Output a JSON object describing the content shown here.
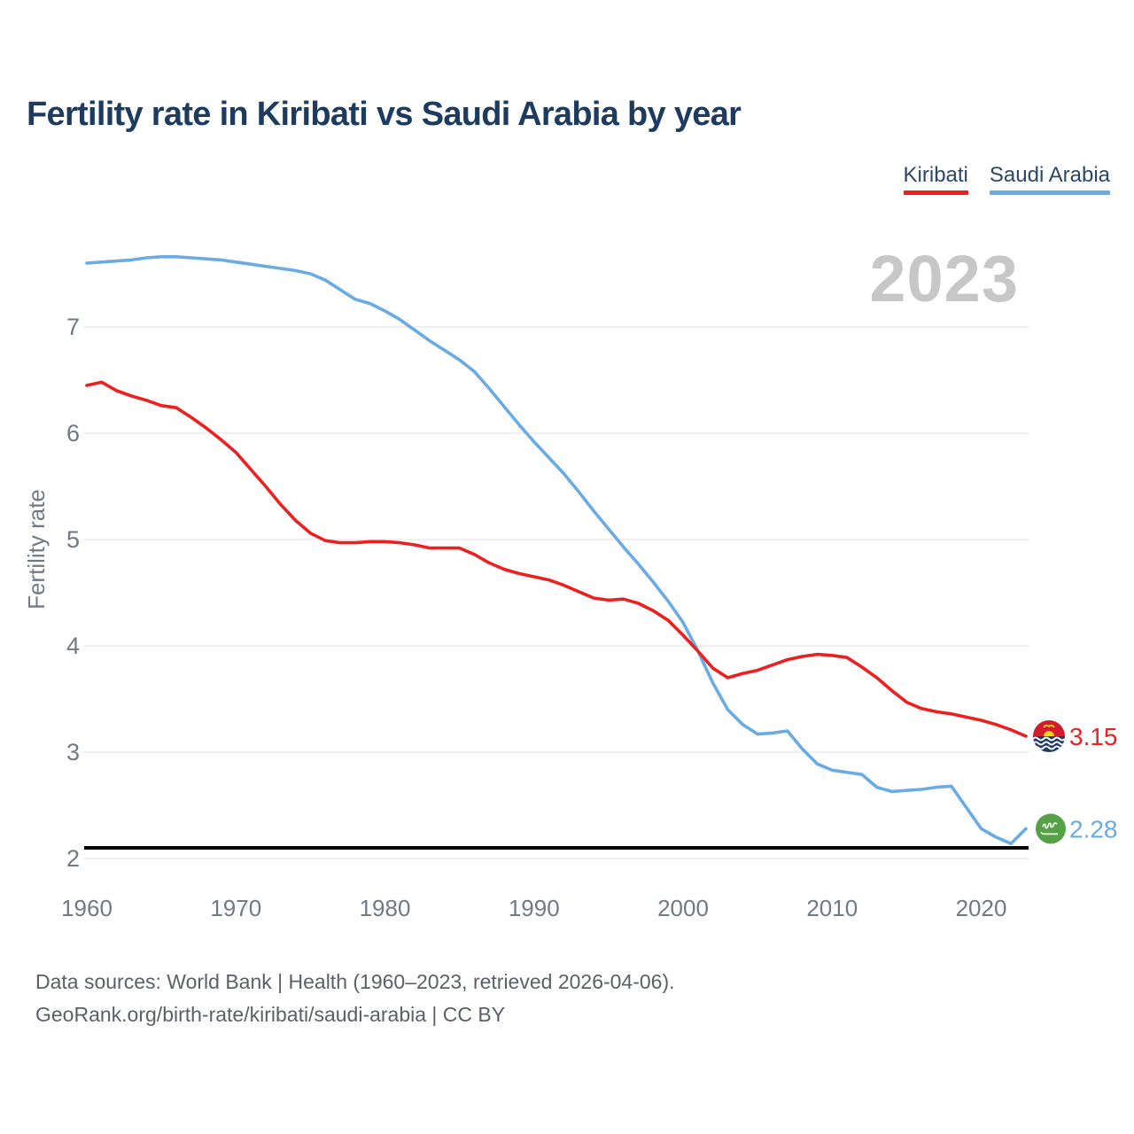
{
  "header": {
    "title": "Fertility rate in Kiribati vs Saudi Arabia by year",
    "legend": [
      {
        "label": "Kiribati",
        "color": "#ec2020"
      },
      {
        "label": "Saudi Arabia",
        "color": "#6aabe2"
      }
    ]
  },
  "watermark": "2023",
  "chart_data": {
    "type": "line",
    "title": "Fertility rate in Kiribati vs Saudi Arabia by year",
    "xlabel": "",
    "ylabel": "Fertility rate",
    "xlim": [
      1960,
      2023
    ],
    "ylim": [
      2,
      7.75
    ],
    "grid": "horizontal-only",
    "legend_position": "top-right",
    "x_ticks": [
      1960,
      1970,
      1980,
      1990,
      2000,
      2010,
      2020
    ],
    "y_ticks": [
      7,
      6,
      5,
      4,
      3,
      2
    ],
    "year_start": 1960,
    "year_end": 2023,
    "replacement_line": {
      "value": 2.1,
      "color": "#000000"
    },
    "series": [
      {
        "name": "Kiribati",
        "color": "#ec2020",
        "end_label": "3.15",
        "final_value": 3.15,
        "flag": "kiribati",
        "values": [
          6.45,
          6.48,
          6.4,
          6.35,
          6.31,
          6.26,
          6.24,
          6.15,
          6.05,
          5.94,
          5.82,
          5.66,
          5.5,
          5.33,
          5.18,
          5.06,
          4.99,
          4.97,
          4.97,
          4.98,
          4.98,
          4.97,
          4.95,
          4.92,
          4.92,
          4.92,
          4.86,
          4.78,
          4.72,
          4.68,
          4.65,
          4.62,
          4.57,
          4.51,
          4.45,
          4.43,
          4.44,
          4.4,
          4.33,
          4.24,
          4.1,
          3.95,
          3.79,
          3.7,
          3.74,
          3.77,
          3.82,
          3.87,
          3.9,
          3.92,
          3.91,
          3.89,
          3.8,
          3.7,
          3.58,
          3.47,
          3.41,
          3.38,
          3.36,
          3.33,
          3.3,
          3.26,
          3.21,
          3.15
        ]
      },
      {
        "name": "Saudi Arabia",
        "color": "#6aabe2",
        "end_label": "2.28",
        "final_value": 2.28,
        "flag": "saudi-arabia",
        "values": [
          7.6,
          7.61,
          7.62,
          7.63,
          7.65,
          7.66,
          7.66,
          7.65,
          7.64,
          7.63,
          7.61,
          7.59,
          7.57,
          7.55,
          7.53,
          7.5,
          7.44,
          7.35,
          7.26,
          7.22,
          7.15,
          7.07,
          6.97,
          6.87,
          6.78,
          6.69,
          6.58,
          6.42,
          6.25,
          6.08,
          5.92,
          5.77,
          5.62,
          5.45,
          5.27,
          5.1,
          4.93,
          4.77,
          4.6,
          4.42,
          4.22,
          3.95,
          3.65,
          3.4,
          3.26,
          3.17,
          3.18,
          3.2,
          3.03,
          2.89,
          2.83,
          2.81,
          2.79,
          2.67,
          2.63,
          2.64,
          2.65,
          2.67,
          2.68,
          2.48,
          2.28,
          2.2,
          2.14,
          2.28
        ]
      }
    ]
  },
  "footer": {
    "line1": "Data sources: World Bank | Health (1960–2023, retrieved 2026-04-06).",
    "line2": "GeoRank.org/birth-rate/kiribati/saudi-arabia | CC BY"
  }
}
